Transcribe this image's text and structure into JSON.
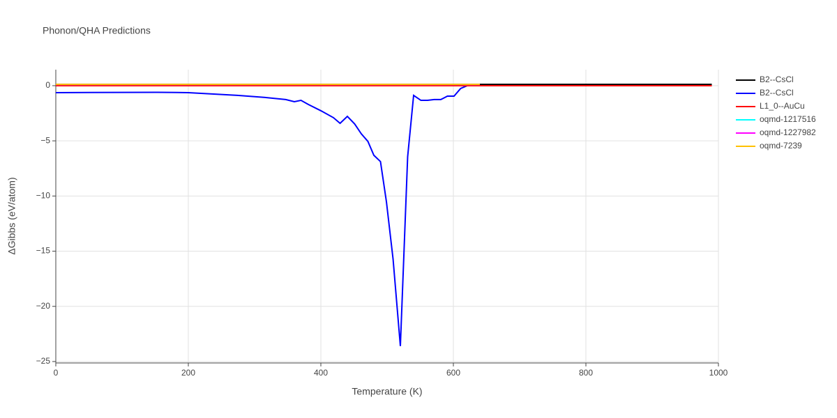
{
  "chart_data": {
    "type": "line",
    "title": "Phonon/QHA Predictions",
    "x_label": "Temperature (K)",
    "y_label": "ΔGibbs (eV/atom)",
    "xlim": [
      0,
      1000
    ],
    "ylim": [
      -25.13,
      1.45
    ],
    "xticks": [
      0,
      200,
      400,
      600,
      800,
      1000
    ],
    "yticks": [
      {
        "value": -25,
        "label": "−25"
      },
      {
        "value": -20,
        "label": "−20"
      },
      {
        "value": -15,
        "label": "−15"
      },
      {
        "value": -10,
        "label": "−10"
      },
      {
        "value": -5,
        "label": "−5"
      },
      0
    ],
    "grid": true,
    "legend": "right",
    "series": [
      {
        "name": "B2--CsCl",
        "color": "#000000",
        "x": [
          0,
          990
        ],
        "values": [
          0.12,
          0.12
        ]
      },
      {
        "name": "B2--CsCl",
        "color": "#0000ff",
        "x": [
          0,
          153,
          200,
          274,
          316,
          347,
          360,
          370,
          381,
          400,
          419,
          429,
          440,
          451,
          461,
          471,
          480,
          490,
          499,
          509,
          520,
          531,
          540,
          551,
          561,
          571,
          581,
          591,
          601,
          611,
          621,
          990
        ],
        "values": [
          -0.63,
          -0.6,
          -0.63,
          -0.88,
          -1.07,
          -1.26,
          -1.45,
          -1.33,
          -1.7,
          -2.27,
          -2.9,
          -3.41,
          -2.78,
          -3.47,
          -4.36,
          -5.05,
          -6.31,
          -6.88,
          -10.54,
          -15.72,
          -23.6,
          -6.44,
          -0.88,
          -1.33,
          -1.33,
          -1.26,
          -1.26,
          -0.95,
          -0.95,
          -0.25,
          0,
          0
        ]
      },
      {
        "name": "L1_0--AuCu",
        "color": "#ff0000",
        "x": [
          0,
          990
        ],
        "values": [
          0,
          0
        ]
      },
      {
        "name": "oqmd-1217516",
        "color": "#00ffff",
        "x": [
          0,
          640
        ],
        "values": [
          0.1,
          0.1
        ]
      },
      {
        "name": "oqmd-1227982",
        "color": "#ff00ff",
        "x": [
          0,
          640
        ],
        "values": [
          0.1,
          0.1
        ]
      },
      {
        "name": "oqmd-7239",
        "color": "#ffc000",
        "x": [
          0,
          640
        ],
        "values": [
          0.12,
          0.12
        ]
      }
    ]
  }
}
